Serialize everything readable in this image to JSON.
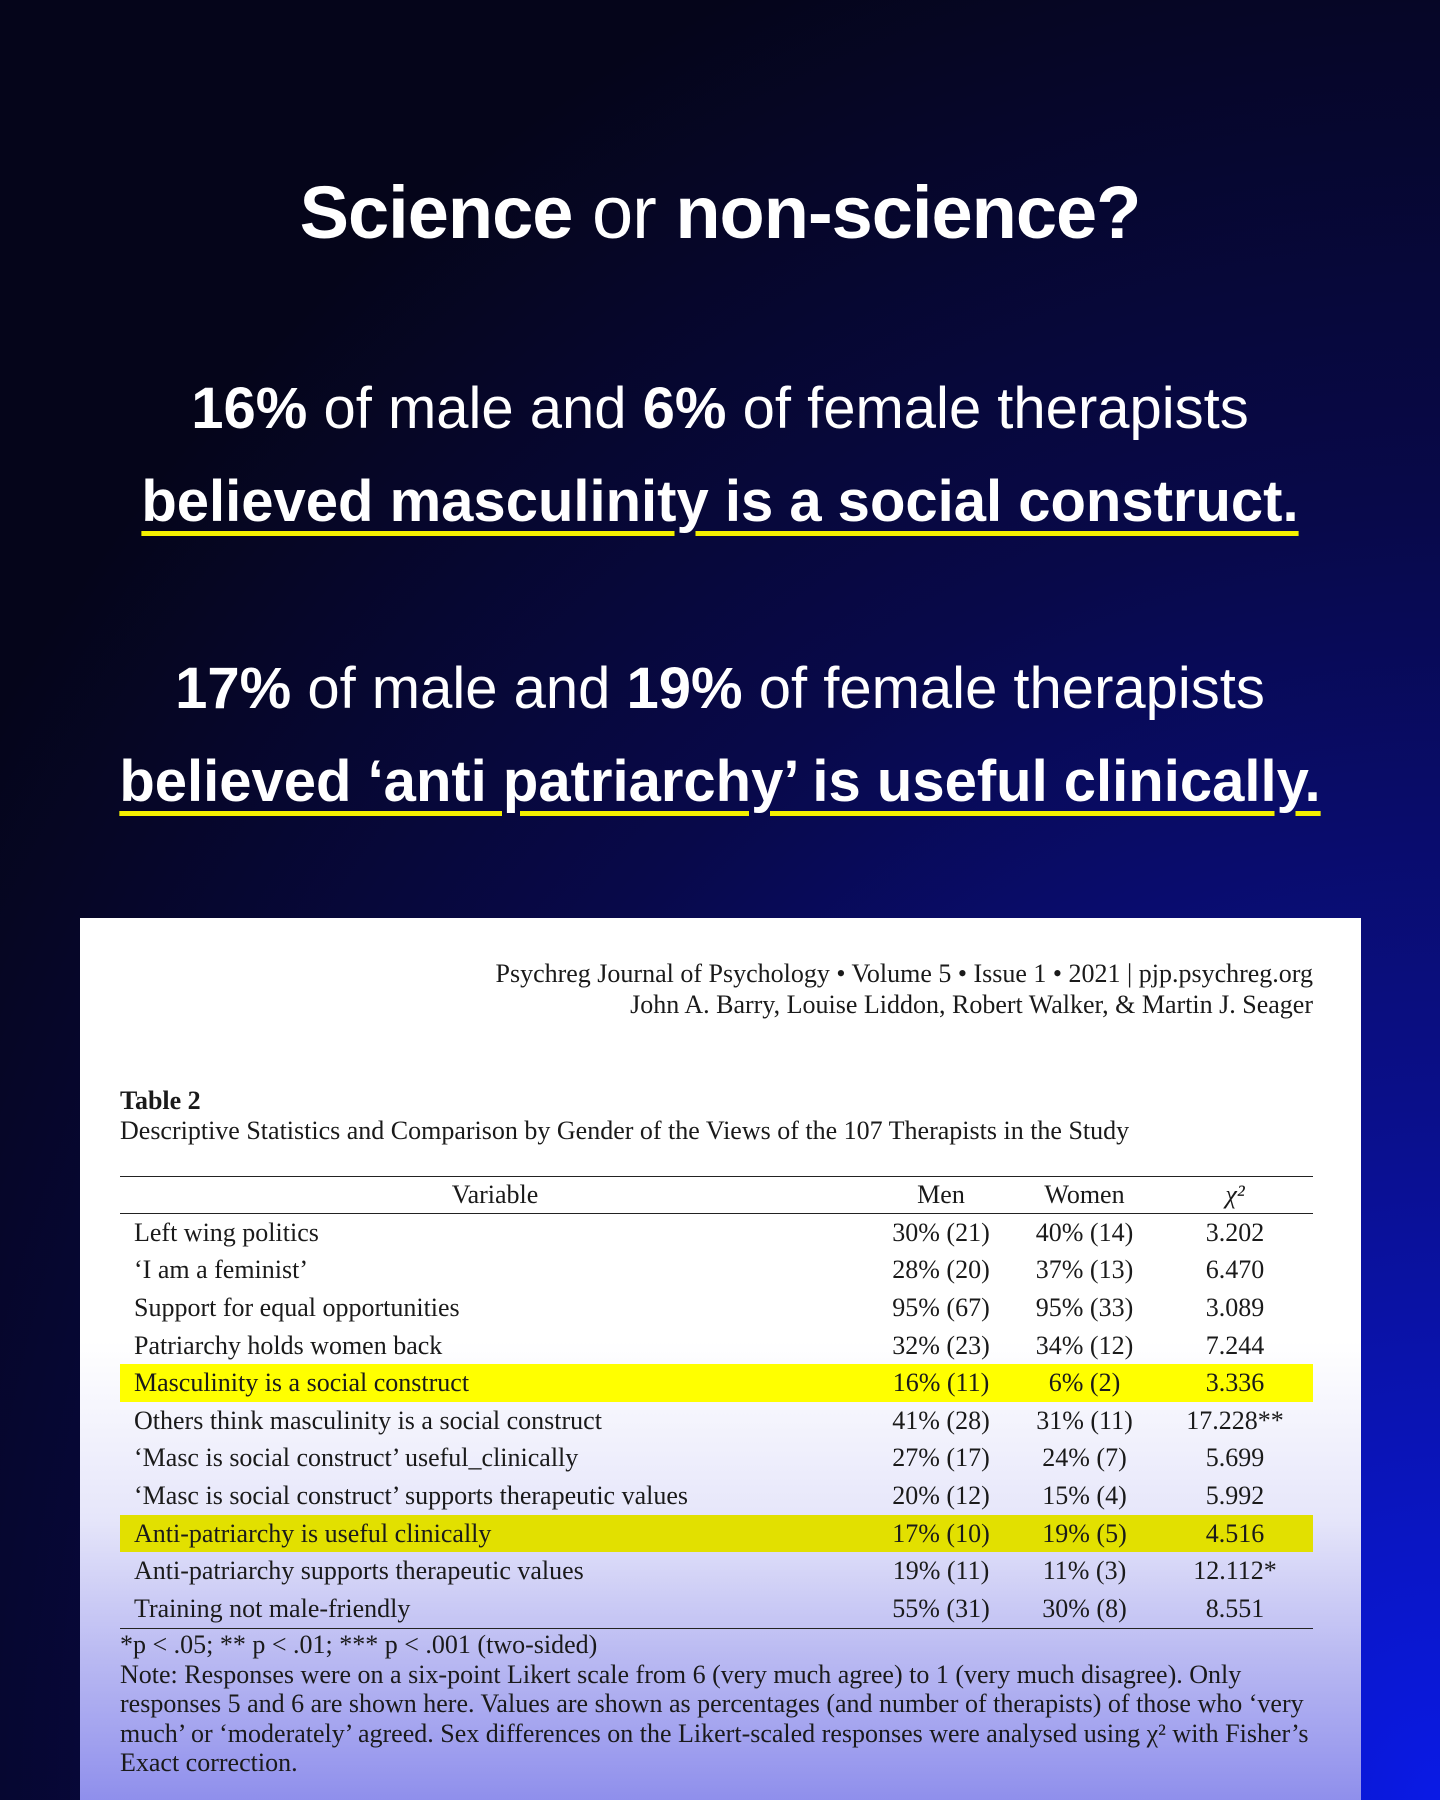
{
  "headline": {
    "title_bold_1": "Science",
    "title_light": "or",
    "title_bold_2": "non-science?",
    "stat1": {
      "pct_male": "16%",
      "text_mid": "of male and",
      "pct_female": "6%",
      "text_end": "of female therapists",
      "claim": "believed masculinity is a social construct."
    },
    "stat2": {
      "pct_male": "17%",
      "text_mid": "of male and",
      "pct_female": "19%",
      "text_end": "of female therapists",
      "claim": "believed ‘anti patriarchy’ is useful clinically."
    }
  },
  "colors": {
    "highlight": "#ffff00",
    "underline": "#f4f000"
  },
  "paper": {
    "journal_line": "Psychreg Journal of Psychology • Volume 5 • Issue 1 • 2021 | pjp.psychreg.org",
    "authors_line": "John A. Barry, Louise Liddon, Robert Walker, & Martin J. Seager",
    "table_label": "Table 2",
    "table_caption": "Descriptive Statistics and Comparison by Gender of the Views of the 107 Therapists in the Study",
    "columns": {
      "variable": "Variable",
      "men": "Men",
      "women": "Women",
      "chi": "χ²"
    },
    "rows": [
      {
        "variable": "Left wing politics",
        "men": "30% (21)",
        "women": "40% (14)",
        "chi": "3.202"
      },
      {
        "variable": "‘I am a feminist’",
        "men": "28% (20)",
        "women": "37% (13)",
        "chi": "6.470"
      },
      {
        "variable": "Support for equal opportunities",
        "men": "95% (67)",
        "women": "95% (33)",
        "chi": "3.089"
      },
      {
        "variable": "Patriarchy holds women back",
        "men": "32% (23)",
        "women": "34% (12)",
        "chi": "7.244"
      },
      {
        "variable": "Masculinity is a social construct",
        "men": "16% (11)",
        "women": "6% (2)",
        "chi": "3.336"
      },
      {
        "variable": "Others think masculinity is a social construct",
        "men": "41% (28)",
        "women": "31% (11)",
        "chi": "17.228**"
      },
      {
        "variable": "‘Masc is social construct’ useful_clinically",
        "men": "27% (17)",
        "women": "24% (7)",
        "chi": "5.699"
      },
      {
        "variable": "‘Masc is social construct’ supports therapeutic values",
        "men": "20% (12)",
        "women": "15% (4)",
        "chi": "5.992"
      },
      {
        "variable": "Anti-patriarchy is useful clinically",
        "men": "17% (10)",
        "women": "19% (5)",
        "chi": "4.516"
      },
      {
        "variable": "Anti-patriarchy supports therapeutic values",
        "men": "19% (11)",
        "women": "11% (3)",
        "chi": "12.112*"
      },
      {
        "variable": "Training not male-friendly",
        "men": "55% (31)",
        "women": "30% (8)",
        "chi": "8.551"
      }
    ],
    "footnote_sig": "*p < .05; ** p < .01; *** p < .001 (two-sided)",
    "note": "Note: Responses were on a six-point Likert scale from 6 (very much agree) to 1 (very much disagree). Only responses 5 and 6 are shown here. Values are shown as percentages (and number of therapists) of those who ‘very much’ or ‘moderately’ agreed. Sex differences on the Likert-scaled responses were analysed using χ² with Fisher’s Exact correction."
  }
}
